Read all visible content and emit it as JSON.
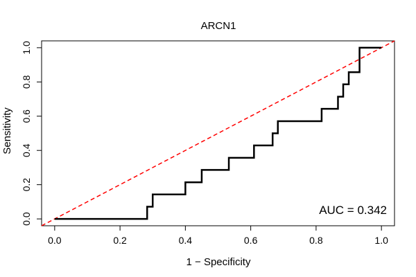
{
  "chart_data": {
    "type": "line",
    "title": "ARCN1",
    "xlabel": "1 − Specificity",
    "ylabel": "Sensitivity",
    "xlim": [
      -0.04,
      1.04
    ],
    "ylim": [
      -0.04,
      1.04
    ],
    "xticks": [
      0.0,
      0.2,
      0.4,
      0.6,
      0.8,
      1.0
    ],
    "xtick_labels": [
      "0.0",
      "0.2",
      "0.4",
      "0.6",
      "0.8",
      "1.0"
    ],
    "yticks": [
      0.0,
      0.2,
      0.4,
      0.6,
      0.8,
      1.0
    ],
    "ytick_labels": [
      "0.0",
      "0.2",
      "0.4",
      "0.6",
      "0.8",
      "1.0"
    ],
    "grid": false,
    "annotation": "AUC = 0.342",
    "colors": {
      "roc": "#000000",
      "reference": "#ff0000"
    },
    "series": [
      {
        "style": "step",
        "x": [
          0.0,
          0.283,
          0.283,
          0.3,
          0.3,
          0.4,
          0.4,
          0.45,
          0.45,
          0.533,
          0.533,
          0.61,
          0.61,
          0.667,
          0.667,
          0.683,
          0.683,
          0.817,
          0.817,
          0.85,
          0.85,
          0.867,
          0.867,
          0.883,
          0.883,
          0.9,
          0.9,
          0.933,
          0.933,
          1.0
        ],
        "y": [
          0.0,
          0.0,
          0.071,
          0.071,
          0.143,
          0.143,
          0.214,
          0.214,
          0.286,
          0.286,
          0.357,
          0.357,
          0.429,
          0.429,
          0.5,
          0.5,
          0.571,
          0.571,
          0.643,
          0.643,
          0.643,
          0.643,
          0.714,
          0.714,
          0.786,
          0.786,
          0.857,
          0.857,
          1.0,
          1.0
        ]
      },
      {
        "style": "dashed",
        "x": [
          -0.04,
          1.04
        ],
        "y": [
          -0.04,
          1.04
        ]
      }
    ]
  }
}
